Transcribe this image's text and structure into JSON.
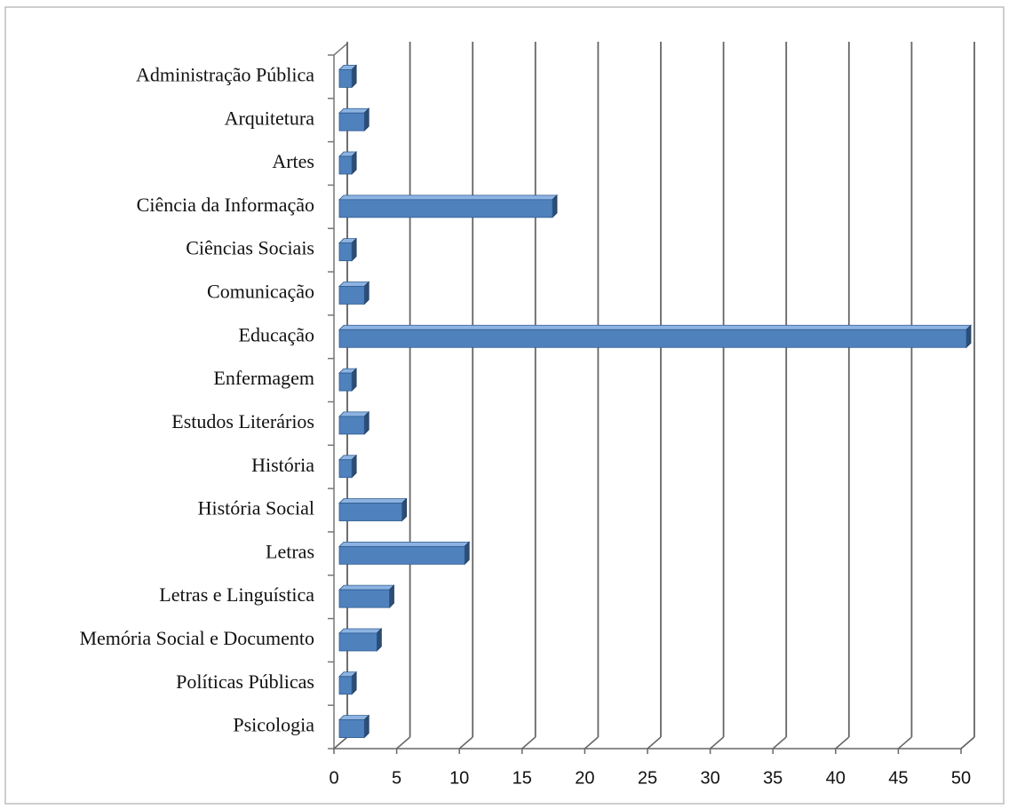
{
  "chart_data": {
    "type": "bar",
    "orientation": "horizontal",
    "three_d": true,
    "categories": [
      "Administração Pública",
      "Arquitetura",
      "Artes",
      "Ciência da Informação",
      "Ciências Sociais",
      "Comunicação",
      "Educação",
      "Enfermagem",
      "Estudos Literários",
      "História",
      "História Social",
      "Letras",
      "Letras e Linguística",
      "Memória Social e Documento",
      "Políticas Públicas",
      "Psicologia"
    ],
    "values": [
      1,
      2,
      1,
      17,
      1,
      2,
      50,
      1,
      2,
      1,
      5,
      10,
      4,
      3,
      1,
      2
    ],
    "color": "#4f81bd",
    "xlim": [
      0,
      50
    ],
    "xticks": [
      0,
      5,
      10,
      15,
      20,
      25,
      30,
      35,
      40,
      45,
      50
    ],
    "grid": true
  }
}
